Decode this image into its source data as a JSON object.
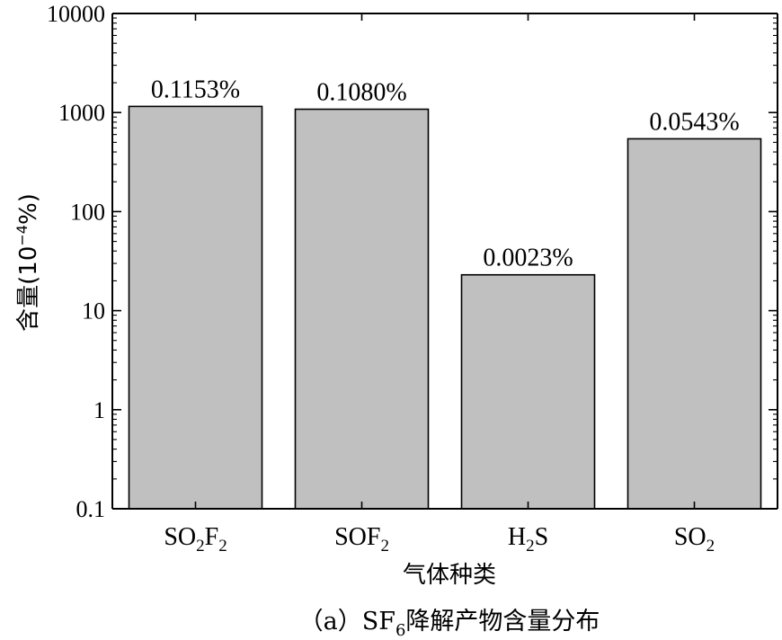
{
  "chart_data": {
    "type": "bar",
    "categories": [
      {
        "base": "SO",
        "sub1": "2",
        "mid": "F",
        "sub2": "2"
      },
      {
        "base": "SOF",
        "sub1": "2",
        "mid": "",
        "sub2": ""
      },
      {
        "base": "H",
        "sub1": "2",
        "mid": "S",
        "sub2": ""
      },
      {
        "base": "SO",
        "sub1": "2",
        "mid": "",
        "sub2": ""
      }
    ],
    "values": [
      1153,
      1080,
      23,
      543
    ],
    "data_labels": [
      "0.1153%",
      "0.1080%",
      "0.0023%",
      "0.0543%"
    ],
    "ylabel": {
      "main": "含量(10",
      "sup": "−4",
      "tail": "%)"
    },
    "xlabel": "气体种类",
    "yscale": "log",
    "ylim": [
      0.1,
      10000
    ],
    "yticks": [
      "0.1",
      "1",
      "10",
      "100",
      "1000",
      "10000"
    ],
    "bar_color": "#c0c0c0",
    "grid": false
  },
  "caption": {
    "prefix": "（a）SF",
    "sub": "6",
    "suffix": "降解产物含量分布"
  }
}
